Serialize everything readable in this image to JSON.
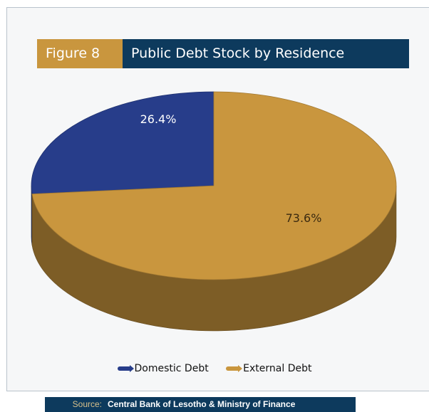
{
  "figure": {
    "label": "Figure 8",
    "title": "Public Debt Stock by Residence"
  },
  "colors": {
    "label_bg": "#c9963e",
    "title_bg": "#0d3a5d",
    "domestic": "#273d8a",
    "external": "#c9963e"
  },
  "chart_data": {
    "type": "pie",
    "style": "3d",
    "title": "Public Debt Stock by Residence",
    "legend_placement": "bottom",
    "slices": [
      {
        "name": "Domestic Debt",
        "value": 26.4,
        "label": "26.4%",
        "color": "#273d8a"
      },
      {
        "name": "External Debt",
        "value": 73.6,
        "label": "73.6%",
        "color": "#c9963e"
      }
    ]
  },
  "source": {
    "key": "Source:",
    "value": "Central Bank of Lesotho & Ministry of Finance"
  }
}
